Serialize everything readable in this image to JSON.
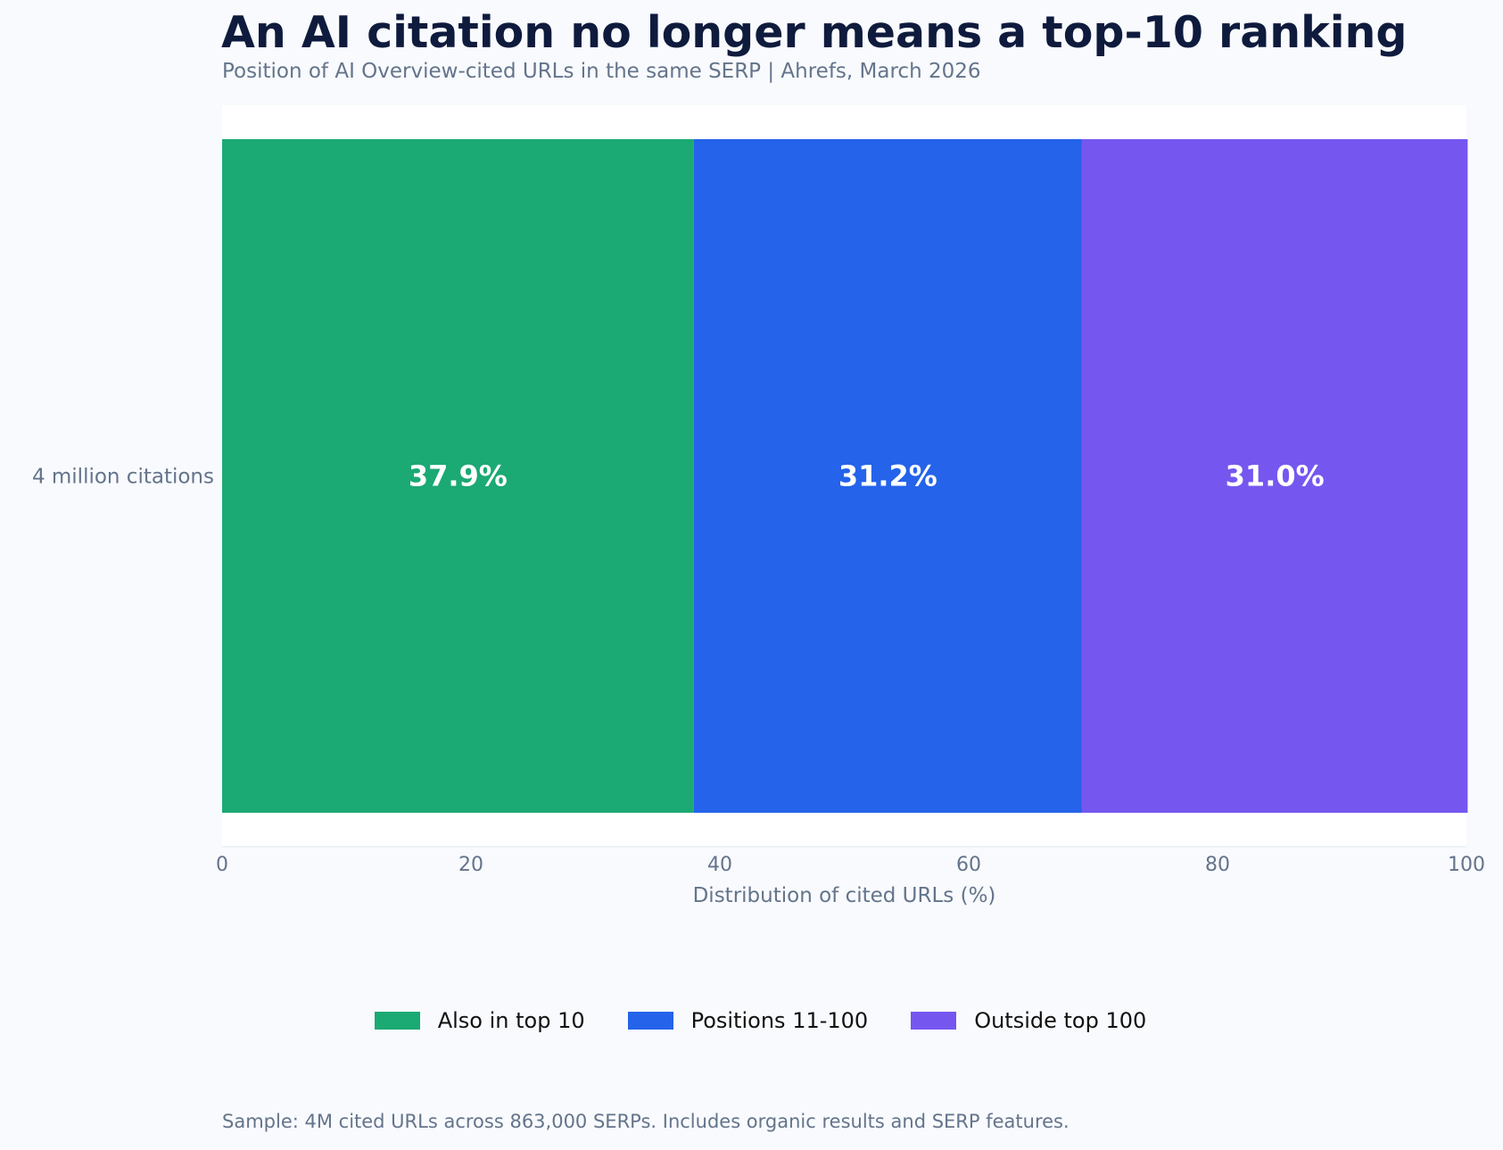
{
  "title": "An AI citation no longer means a top-10 ranking",
  "subtitle": "Position of AI Overview-cited URLs in the same SERP | Ahrefs, March 2026",
  "footnote": "Sample: 4M cited URLs across 863,000 SERPs. Includes organic results and SERP features.",
  "colors": {
    "background": "#f8fafd",
    "plot_area": "#ffffff",
    "also_top10": "#1ba974",
    "positions_11_100": "#2463ea",
    "outside_top100": "#7557f0"
  },
  "chart_data": {
    "type": "bar",
    "orientation": "horizontal",
    "stacked": true,
    "categories": [
      "4 million citations"
    ],
    "series": [
      {
        "name": "Also in top 10",
        "values": [
          37.9
        ],
        "label": "37.9%",
        "color": "#1ba974"
      },
      {
        "name": "Positions 11-100",
        "values": [
          31.2
        ],
        "label": "31.2%",
        "color": "#2463ea"
      },
      {
        "name": "Outside top 100",
        "values": [
          31.0
        ],
        "label": "31.0%",
        "color": "#7557f0"
      }
    ],
    "xlabel": "Distribution of cited URLs (%)",
    "ylabel": "",
    "xlim": [
      0,
      100
    ],
    "xticks": [
      0,
      20,
      40,
      60,
      80,
      100
    ],
    "grid": false,
    "legend_position": "bottom-center"
  }
}
